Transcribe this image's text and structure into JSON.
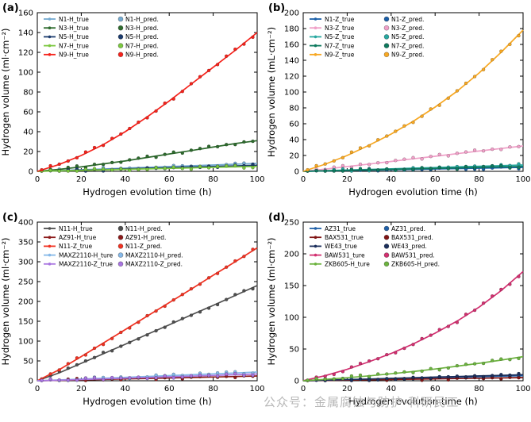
{
  "watermark": "公众号：金属腐蚀与防护-科研民工",
  "chart_data": {
    "note": "see charts array",
    "type": "scatter-line"
  },
  "charts": [
    {
      "panel_label": "(a)",
      "type": "scatter-line",
      "xlabel": "Hydrogen evolution time (h)",
      "ylabel": "Hydrogen volume (ml·cm⁻²)",
      "xlim": [
        0,
        100
      ],
      "ylim": [
        0,
        160
      ],
      "xtick_step": 20,
      "ytick_step": 20,
      "x": [
        0,
        10,
        20,
        30,
        40,
        50,
        60,
        70,
        80,
        90,
        100
      ],
      "series": [
        {
          "true_label": "N1-H_true",
          "pred_label": "N1-H_pred.",
          "color": "#74aad0",
          "y": [
            0,
            0.8,
            1.6,
            2.4,
            3.2,
            4.0,
            4.8,
            5.6,
            6.4,
            7.2,
            8.0
          ]
        },
        {
          "true_label": "N3-H_true",
          "pred_label": "N3-H_pred.",
          "color": "#2e6b2e",
          "y": [
            0,
            2,
            4.5,
            7.5,
            10.5,
            14,
            17.5,
            21,
            24.5,
            28,
            31
          ]
        },
        {
          "true_label": "N5-H_true",
          "pred_label": "N5-H_pred.",
          "color": "#1c3c6e",
          "y": [
            0,
            0.6,
            1.2,
            1.8,
            2.5,
            3.1,
            3.7,
            4.3,
            4.9,
            5.5,
            6.1
          ]
        },
        {
          "true_label": "N7-H_true",
          "pred_label": "N7-H_pred.",
          "color": "#7cc840",
          "y": [
            0,
            0.5,
            1.0,
            1.5,
            2.0,
            2.5,
            3.0,
            3.5,
            4.0,
            4.5,
            5.0
          ]
        },
        {
          "true_label": "N9-H_true",
          "pred_label": "N9-H_pred.",
          "color": "#f5221b",
          "y": [
            0,
            7,
            16,
            27,
            40,
            55,
            71,
            88,
            105,
            122,
            140
          ]
        }
      ]
    },
    {
      "panel_label": "(b)",
      "type": "scatter-line",
      "xlabel": "Hydrogen evolution time (h)",
      "ylabel": "Hydrogen volume (mL·cm⁻²)",
      "xlim": [
        0,
        100
      ],
      "ylim": [
        0,
        200
      ],
      "xtick_step": 20,
      "ytick_step": 20,
      "x": [
        0,
        10,
        20,
        30,
        40,
        50,
        60,
        70,
        80,
        90,
        100
      ],
      "series": [
        {
          "true_label": "N1-Z_true",
          "pred_label": "N1-Z_pred.",
          "color": "#1b5fa8",
          "y": [
            0,
            0.5,
            1.0,
            1.5,
            2.0,
            2.5,
            3.0,
            3.5,
            4.0,
            4.5,
            5.0
          ]
        },
        {
          "true_label": "N3-Z_true",
          "pred_label": "N3-Z_pred.",
          "color": "#f0a0c8",
          "y": [
            0,
            2.8,
            6,
            9.2,
            12.5,
            15.8,
            19,
            22.3,
            25.6,
            28.8,
            32
          ]
        },
        {
          "true_label": "N5-Z_true",
          "pred_label": "N5-Z_pred.",
          "color": "#28a8a0",
          "y": [
            0,
            0.8,
            1.6,
            2.4,
            3.2,
            4.0,
            4.8,
            5.6,
            6.4,
            7.2,
            8.0
          ]
        },
        {
          "true_label": "N7-Z_true",
          "pred_label": "N7-Z_pred.",
          "color": "#0e7a5e",
          "y": [
            0,
            0.6,
            1.2,
            1.9,
            2.5,
            3.1,
            3.7,
            4.4,
            5.0,
            5.6,
            6.2
          ]
        },
        {
          "true_label": "N9-Z_true",
          "pred_label": "N9-Z_pred.",
          "color": "#f7a823",
          "y": [
            0,
            9,
            20,
            33,
            47,
            63,
            81,
            101,
            124,
            150,
            178
          ]
        }
      ]
    },
    {
      "panel_label": "(c)",
      "type": "scatter-line",
      "xlabel": "Hydrogen evolution time (h)",
      "ylabel": "Hydrogen volume (ml·cm⁻²)",
      "xlim": [
        0,
        100
      ],
      "ylim": [
        0,
        400
      ],
      "xtick_step": 20,
      "ytick_step": 50,
      "x": [
        0,
        10,
        20,
        30,
        40,
        50,
        60,
        70,
        80,
        90,
        100
      ],
      "series": [
        {
          "true_label": "N11-H_true",
          "pred_label": "N11-H_pred.",
          "color": "#4f4f4f",
          "y": [
            0,
            20,
            44,
            68,
            92,
            117,
            141,
            166,
            190,
            215,
            240
          ]
        },
        {
          "true_label": "AZ91-H_true",
          "pred_label": "AZ91-H_pred.",
          "color": "#8c1b1b",
          "y": [
            0,
            1,
            2.2,
            3.4,
            4.6,
            5.8,
            7,
            8.2,
            9.4,
            10.6,
            12
          ]
        },
        {
          "true_label": "N11-Z_true",
          "pred_label": "N11-Z_pred.",
          "color": "#f03222",
          "y": [
            0,
            28,
            61,
            95,
            129,
            163,
            197,
            231,
            266,
            300,
            335
          ]
        },
        {
          "true_label": "MAXZ2110-H_ture",
          "pred_label": "MAXZ2110-H_pred.",
          "color": "#85b8e8",
          "y": [
            0,
            2,
            4.2,
            6.4,
            8.6,
            10.8,
            13,
            15.2,
            17.4,
            19.6,
            22
          ]
        },
        {
          "true_label": "MAXZ2110-Z_true",
          "pred_label": "MAXZ2110-Z_pred.",
          "color": "#a875e0",
          "y": [
            0,
            1.5,
            3.2,
            4.9,
            6.6,
            8.3,
            10,
            11.7,
            13.4,
            15.1,
            17
          ]
        }
      ]
    },
    {
      "panel_label": "(d)",
      "type": "scatter-line",
      "xlabel": "Hydrogen evolution time (h)",
      "ylabel": "Hydrogen volume (ml·cm⁻²)",
      "xlim": [
        0,
        100
      ],
      "ylim": [
        0,
        250
      ],
      "xtick_step": 20,
      "ytick_step": 50,
      "x": [
        0,
        10,
        20,
        30,
        40,
        50,
        60,
        70,
        80,
        90,
        100
      ],
      "series": [
        {
          "true_label": "AZ31_true",
          "pred_label": "AZ31_pred.",
          "color": "#2060a8",
          "y": [
            0,
            0.8,
            1.6,
            2.4,
            3.2,
            4.0,
            4.8,
            5.6,
            6.4,
            7.2,
            8.0
          ]
        },
        {
          "true_label": "BAX531_true",
          "pred_label": "BAX531_pred.",
          "color": "#801414",
          "y": [
            0,
            0.5,
            1.0,
            1.5,
            2.0,
            2.5,
            3.0,
            3.5,
            4.0,
            4.5,
            5.0
          ]
        },
        {
          "true_label": "WE43_true",
          "pred_label": "WE43_pred.",
          "color": "#1c2f5c",
          "y": [
            0,
            0.9,
            1.9,
            2.8,
            3.8,
            4.7,
            5.7,
            6.6,
            7.6,
            8.5,
            9.5
          ]
        },
        {
          "true_label": "BAW531_ture",
          "pred_label": "BAW531_pred.",
          "color": "#d23070",
          "y": [
            0,
            8,
            18,
            30,
            43,
            58,
            75,
            94,
            116,
            142,
            172
          ]
        },
        {
          "true_label": "ZKB605-H_ture",
          "pred_label": "ZKB605-H_pred.",
          "color": "#6cb33f",
          "y": [
            0,
            2.2,
            4.8,
            7.8,
            11,
            14.5,
            18.5,
            23,
            27.5,
            32.5,
            38
          ]
        }
      ]
    }
  ]
}
